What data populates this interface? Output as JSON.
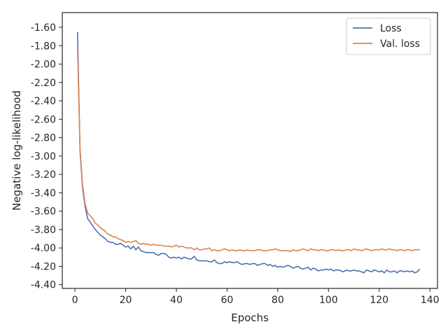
{
  "chart_data": {
    "type": "line",
    "xlabel": "Epochs",
    "ylabel": "Negative log-likelihood",
    "xlim": [
      -5,
      143
    ],
    "ylim": [
      -4.44,
      -1.44
    ],
    "grid": false,
    "legend_position": "top-right",
    "x_ticks": [
      0,
      20,
      40,
      60,
      80,
      100,
      120,
      140
    ],
    "x_tick_labels": [
      "0",
      "20",
      "40",
      "60",
      "80",
      "100",
      "120",
      "140"
    ],
    "y_ticks": [
      -1.6,
      -1.8,
      -2.0,
      -2.2,
      -2.4,
      -2.6,
      -2.8,
      -3.0,
      -3.2,
      -3.4,
      -3.6,
      -3.8,
      -4.0,
      -4.2,
      -4.4
    ],
    "y_tick_labels": [
      "-1.60",
      "-1.80",
      "-2.00",
      "-2.20",
      "-2.40",
      "-2.60",
      "-2.80",
      "-3.00",
      "-3.20",
      "-3.40",
      "-3.60",
      "-3.80",
      "-4.00",
      "-4.20",
      "-4.40"
    ],
    "x": [
      1,
      2,
      3,
      4,
      5,
      6,
      7,
      8,
      9,
      10,
      11,
      12,
      13,
      14,
      15,
      16,
      17,
      18,
      19,
      20,
      21,
      22,
      23,
      24,
      25,
      26,
      27,
      28,
      29,
      30,
      31,
      32,
      33,
      34,
      35,
      36,
      37,
      38,
      39,
      40,
      41,
      42,
      43,
      44,
      45,
      46,
      47,
      48,
      49,
      50,
      51,
      52,
      53,
      54,
      55,
      56,
      57,
      58,
      59,
      60,
      61,
      62,
      63,
      64,
      65,
      66,
      67,
      68,
      69,
      70,
      71,
      72,
      73,
      74,
      75,
      76,
      77,
      78,
      79,
      80,
      81,
      82,
      83,
      84,
      85,
      86,
      87,
      88,
      89,
      90,
      91,
      92,
      93,
      94,
      95,
      96,
      97,
      98,
      99,
      100,
      101,
      102,
      103,
      104,
      105,
      106,
      107,
      108,
      109,
      110,
      111,
      112,
      113,
      114,
      115,
      116,
      117,
      118,
      119,
      120,
      121,
      122,
      123,
      124,
      125,
      126,
      127,
      128,
      129,
      130,
      131,
      132,
      133,
      134,
      135,
      136
    ],
    "series": [
      {
        "name": "Loss",
        "color": "#4c72b0",
        "values": [
          -1.65,
          -2.95,
          -3.35,
          -3.55,
          -3.68,
          -3.72,
          -3.76,
          -3.8,
          -3.83,
          -3.86,
          -3.88,
          -3.9,
          -3.93,
          -3.94,
          -3.94,
          -3.96,
          -3.96,
          -3.95,
          -3.97,
          -3.99,
          -3.98,
          -4.01,
          -3.98,
          -4.02,
          -3.99,
          -4.03,
          -4.04,
          -4.05,
          -4.05,
          -4.05,
          -4.05,
          -4.07,
          -4.08,
          -4.06,
          -4.06,
          -4.07,
          -4.1,
          -4.11,
          -4.1,
          -4.11,
          -4.1,
          -4.12,
          -4.1,
          -4.11,
          -4.12,
          -4.12,
          -4.09,
          -4.13,
          -4.14,
          -4.14,
          -4.14,
          -4.14,
          -4.15,
          -4.15,
          -4.13,
          -4.16,
          -4.17,
          -4.17,
          -4.15,
          -4.16,
          -4.15,
          -4.16,
          -4.16,
          -4.15,
          -4.17,
          -4.18,
          -4.17,
          -4.17,
          -4.18,
          -4.17,
          -4.17,
          -4.19,
          -4.18,
          -4.17,
          -4.17,
          -4.19,
          -4.18,
          -4.2,
          -4.19,
          -4.21,
          -4.2,
          -4.21,
          -4.2,
          -4.19,
          -4.2,
          -4.22,
          -4.21,
          -4.2,
          -4.22,
          -4.23,
          -4.22,
          -4.21,
          -4.24,
          -4.22,
          -4.23,
          -4.25,
          -4.24,
          -4.24,
          -4.23,
          -4.24,
          -4.23,
          -4.25,
          -4.24,
          -4.24,
          -4.25,
          -4.26,
          -4.24,
          -4.25,
          -4.25,
          -4.24,
          -4.25,
          -4.25,
          -4.26,
          -4.27,
          -4.24,
          -4.25,
          -4.26,
          -4.24,
          -4.25,
          -4.26,
          -4.25,
          -4.27,
          -4.24,
          -4.26,
          -4.26,
          -4.25,
          -4.27,
          -4.25,
          -4.25,
          -4.26,
          -4.25,
          -4.26,
          -4.25,
          -4.27,
          -4.26,
          -4.23
        ]
      },
      {
        "name": "Val. loss",
        "color": "#dd8452",
        "values": [
          -1.82,
          -2.92,
          -3.32,
          -3.52,
          -3.62,
          -3.65,
          -3.68,
          -3.73,
          -3.75,
          -3.78,
          -3.8,
          -3.82,
          -3.85,
          -3.86,
          -3.88,
          -3.88,
          -3.9,
          -3.91,
          -3.92,
          -3.94,
          -3.93,
          -3.94,
          -3.93,
          -3.92,
          -3.95,
          -3.96,
          -3.95,
          -3.96,
          -3.96,
          -3.97,
          -3.96,
          -3.97,
          -3.97,
          -3.97,
          -3.98,
          -3.98,
          -3.98,
          -3.99,
          -3.98,
          -3.97,
          -3.99,
          -3.98,
          -3.99,
          -4.0,
          -4.0,
          -4.0,
          -4.02,
          -4.0,
          -4.02,
          -4.02,
          -4.01,
          -4.01,
          -4.0,
          -4.03,
          -4.02,
          -4.03,
          -4.03,
          -4.02,
          -4.01,
          -4.02,
          -4.03,
          -4.02,
          -4.03,
          -4.03,
          -4.02,
          -4.03,
          -4.03,
          -4.02,
          -4.03,
          -4.03,
          -4.03,
          -4.02,
          -4.02,
          -4.03,
          -4.03,
          -4.03,
          -4.02,
          -4.02,
          -4.01,
          -4.02,
          -4.03,
          -4.03,
          -4.03,
          -4.03,
          -4.04,
          -4.02,
          -4.03,
          -4.03,
          -4.02,
          -4.01,
          -4.02,
          -4.03,
          -4.01,
          -4.02,
          -4.02,
          -4.03,
          -4.02,
          -4.02,
          -4.03,
          -4.03,
          -4.02,
          -4.02,
          -4.03,
          -4.02,
          -4.03,
          -4.03,
          -4.02,
          -4.02,
          -4.03,
          -4.01,
          -4.02,
          -4.02,
          -4.03,
          -4.02,
          -4.01,
          -4.02,
          -4.03,
          -4.02,
          -4.02,
          -4.02,
          -4.01,
          -4.02,
          -4.02,
          -4.01,
          -4.02,
          -4.02,
          -4.03,
          -4.02,
          -4.02,
          -4.03,
          -4.02,
          -4.02,
          -4.03,
          -4.02,
          -4.02,
          -4.02
        ]
      }
    ]
  }
}
